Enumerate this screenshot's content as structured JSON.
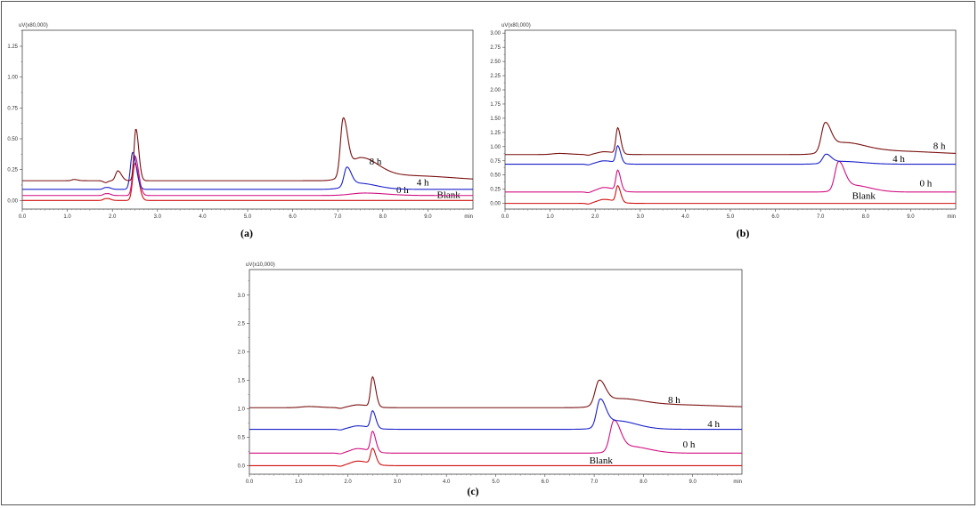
{
  "chart_data": [
    {
      "id": "a",
      "type": "line",
      "caption": "(a)",
      "y_unit_label": "uV(x80,000)",
      "x_unit_label": "min",
      "xlim": [
        0,
        10
      ],
      "ylim": [
        -0.07,
        1.38
      ],
      "yticks": [
        "0.00",
        "0.25",
        "0.50",
        "0.75",
        "1.00",
        "1.25"
      ],
      "xticks": [
        "0.0",
        "1.0",
        "2.0",
        "3.0",
        "4.0",
        "5.0",
        "6.0",
        "7.0",
        "8.0",
        "9.0"
      ],
      "series": [
        {
          "name": "Blank",
          "color": "#d01010",
          "baseline": 0.0,
          "label_x": 9.2,
          "label_y": 0.02,
          "peaks": [
            [
              1.85,
              0.03,
              0.05
            ],
            [
              2.5,
              0.3,
              0.05
            ]
          ]
        },
        {
          "name": "0 h",
          "color": "#d01080",
          "baseline": 0.04,
          "label_x": 8.3,
          "label_y": 0.06,
          "peaks": [
            [
              1.85,
              0.03,
              0.05
            ],
            [
              2.5,
              0.32,
              0.05
            ],
            [
              7.6,
              0.02,
              0.3
            ]
          ]
        },
        {
          "name": "4 h",
          "color": "#1a20c8",
          "baseline": 0.09,
          "label_x": 8.75,
          "label_y": 0.12,
          "peaks": [
            [
              1.85,
              0.03,
              0.05
            ],
            [
              2.45,
              0.3,
              0.05
            ],
            [
              7.2,
              0.15,
              0.06
            ],
            [
              7.45,
              0.05,
              0.25
            ]
          ]
        },
        {
          "name": "8 h",
          "color": "#7a1010",
          "baseline": 0.16,
          "label_x": 7.7,
          "label_y": 0.29,
          "peaks": [
            [
              1.15,
              0.01,
              0.05
            ],
            [
              2.12,
              0.08,
              0.05
            ],
            [
              2.52,
              0.42,
              0.04
            ],
            [
              7.12,
              0.45,
              0.06
            ],
            [
              7.5,
              0.18,
              0.25
            ],
            [
              8.6,
              0.04,
              0.6
            ]
          ]
        }
      ]
    },
    {
      "id": "b",
      "type": "line",
      "caption": "(b)",
      "y_unit_label": "uV(x80,000)",
      "x_unit_label": "min",
      "xlim": [
        0,
        10
      ],
      "ylim": [
        -0.1,
        3.05
      ],
      "yticks": [
        "0.00",
        "0.25",
        "0.50",
        "0.75",
        "1.00",
        "1.25",
        "1.50",
        "1.75",
        "2.00",
        "2.25",
        "2.50",
        "2.75",
        "3.00"
      ],
      "xticks": [
        "0.0",
        "1.0",
        "2.0",
        "3.0",
        "4.0",
        "5.0",
        "6.0",
        "7.0",
        "8.0",
        "9.0"
      ],
      "series": [
        {
          "name": "Blank",
          "color": "#d01010",
          "baseline": 0.0,
          "label_x": 7.7,
          "label_y": 0.08,
          "peaks": [
            [
              2.2,
              0.07,
              0.15
            ],
            [
              2.5,
              0.28,
              0.04
            ]
          ]
        },
        {
          "name": "0 h",
          "color": "#d01080",
          "baseline": 0.2,
          "label_x": 9.2,
          "label_y": 0.3,
          "peaks": [
            [
              2.2,
              0.08,
              0.15
            ],
            [
              2.5,
              0.35,
              0.04
            ],
            [
              7.4,
              0.48,
              0.08
            ],
            [
              7.7,
              0.12,
              0.25
            ]
          ]
        },
        {
          "name": "4 h",
          "color": "#1a20c8",
          "baseline": 0.69,
          "label_x": 8.6,
          "label_y": 0.73,
          "peaks": [
            [
              2.2,
              0.06,
              0.15
            ],
            [
              2.5,
              0.3,
              0.04
            ],
            [
              7.12,
              0.15,
              0.07
            ],
            [
              7.45,
              0.05,
              0.3
            ]
          ]
        },
        {
          "name": "8 h",
          "color": "#7a1010",
          "baseline": 0.86,
          "label_x": 9.5,
          "label_y": 0.96,
          "peaks": [
            [
              1.2,
              0.02,
              0.15
            ],
            [
              2.2,
              0.05,
              0.15
            ],
            [
              2.5,
              0.45,
              0.04
            ],
            [
              7.1,
              0.48,
              0.08
            ],
            [
              7.5,
              0.2,
              0.3
            ],
            [
              8.6,
              0.06,
              0.6
            ]
          ]
        }
      ]
    },
    {
      "id": "c",
      "type": "line",
      "caption": "(c)",
      "y_unit_label": "uV(x10,000)",
      "x_unit_label": "min",
      "xlim": [
        0,
        10
      ],
      "ylim": [
        -0.15,
        3.45
      ],
      "yticks": [
        "0.0",
        "0.5",
        "1.0",
        "1.5",
        "2.0",
        "2.5",
        "3.0"
      ],
      "xticks": [
        "0.0",
        "1.0",
        "2.0",
        "3.0",
        "4.0",
        "5.0",
        "6.0",
        "7.0",
        "8.0",
        "9.0"
      ],
      "series": [
        {
          "name": "Blank",
          "color": "#d01010",
          "baseline": 0.0,
          "label_x": 6.9,
          "label_y": 0.04,
          "peaks": [
            [
              2.2,
              0.08,
              0.15
            ],
            [
              2.5,
              0.27,
              0.04
            ]
          ]
        },
        {
          "name": "0 h",
          "color": "#d01080",
          "baseline": 0.22,
          "label_x": 8.8,
          "label_y": 0.32,
          "peaks": [
            [
              2.2,
              0.08,
              0.15
            ],
            [
              2.5,
              0.35,
              0.04
            ],
            [
              7.4,
              0.52,
              0.08
            ],
            [
              7.7,
              0.12,
              0.25
            ]
          ]
        },
        {
          "name": "4 h",
          "color": "#1a20c8",
          "baseline": 0.64,
          "label_x": 9.3,
          "label_y": 0.68,
          "peaks": [
            [
              2.2,
              0.06,
              0.15
            ],
            [
              2.5,
              0.3,
              0.04
            ],
            [
              7.12,
              0.47,
              0.07
            ],
            [
              7.45,
              0.15,
              0.25
            ]
          ]
        },
        {
          "name": "8 h",
          "color": "#7a1010",
          "baseline": 1.02,
          "label_x": 8.5,
          "label_y": 1.1,
          "peaks": [
            [
              1.2,
              0.02,
              0.15
            ],
            [
              2.2,
              0.05,
              0.15
            ],
            [
              2.5,
              0.52,
              0.04
            ],
            [
              7.1,
              0.42,
              0.08
            ],
            [
              7.5,
              0.15,
              0.3
            ],
            [
              8.6,
              0.05,
              0.6
            ]
          ]
        }
      ]
    }
  ]
}
